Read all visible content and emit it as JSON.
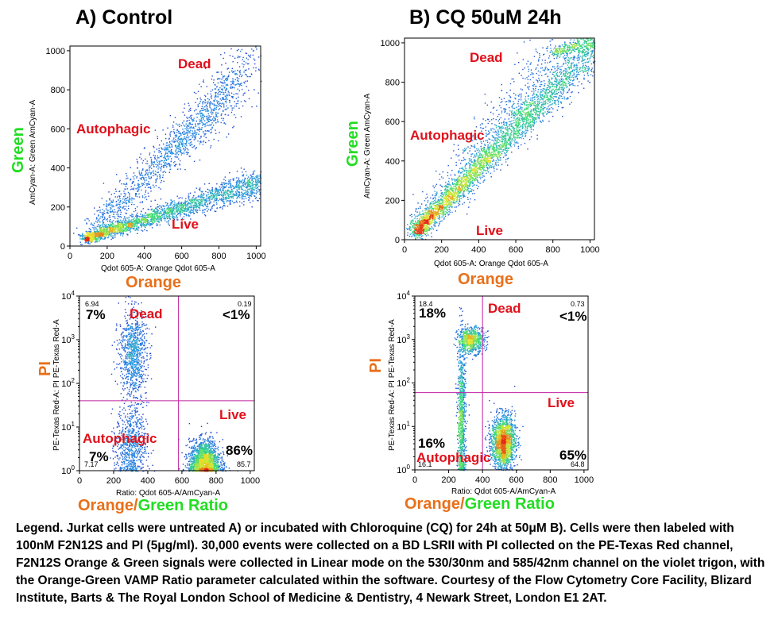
{
  "panels": {
    "a_title": "A) Control",
    "b_title": "B) CQ 50uM 24h"
  },
  "labels": {
    "green": "Green",
    "orange": "Orange",
    "pi": "PI",
    "ratio_orange": "Orange/",
    "ratio_green": "Green Ratio",
    "dead": "Dead",
    "autophagic": "Autophagic",
    "live": "Live",
    "y_top": "AmCyan-A: Green AmCyan-A",
    "x_top": "Qdot 605-A: Orange Qdot 605-A",
    "y_bottom": "PE-Texas Red-A: PI PE-Texas Red-A",
    "x_bottom": "Ratio: Qdot 605-A/AmCyan-A"
  },
  "quadrants": {
    "a": {
      "ul_small": "6.94",
      "ul_big": "7%",
      "ur_small": "0.19",
      "ur_big": "<1%",
      "ll_big": "7%",
      "ll_small": "7.17",
      "lr_big": "86%",
      "lr_small": "85.7"
    },
    "b": {
      "ul_small": "18.4",
      "ul_big": "18%",
      "ur_small": "0.73",
      "ur_big": "<1%",
      "ll_big": "16%",
      "ll_small": "16.1",
      "lr_big": "65%",
      "lr_small": "64.8"
    }
  },
  "legend_text": "Legend. Jurkat cells were untreated A) or incubated with Chloroquine (CQ) for 24h at 50μM B).   Cells were then labeled with 100nM F2N12S and PI (5μg/ml). 30,000 events were collected  on a BD LSRII with PI collected on the PE-Texas Red channel, F2N12S Orange & Green signals were collected in Linear mode on the 530/30nm and 585/42nm channel on the violet trigon, with the Orange-Green VAMP Ratio parameter calculated within the software. Courtesy of the Flow Cytometry Core Facility, Blizard Institute, Barts &  The Royal London School of Medicine & Dentistry, 4 Newark Street, London E1 2AT.",
  "chart_data": [
    {
      "type": "scatter",
      "title": "A) Control",
      "xlabel": "Qdot 605-A: Orange Qdot 605-A",
      "ylabel": "AmCyan-A: Green AmCyan-A",
      "xlim": [
        0,
        1024
      ],
      "ylim": [
        0,
        1024
      ],
      "xticks": [
        0,
        200,
        400,
        600,
        800,
        1000
      ],
      "yticks": [
        0,
        200,
        400,
        600,
        800,
        1000
      ],
      "annotations": [
        "Dead",
        "Autophagic",
        "Live"
      ],
      "populations": [
        {
          "name": "Live",
          "x0": 80,
          "y0": 40,
          "x1": 1024,
          "y1": 330,
          "spread": 25,
          "n": 2600
        },
        {
          "name": "Autophagic",
          "x0": 100,
          "y0": 60,
          "x1": 900,
          "y1": 840,
          "spread": 55,
          "n": 1100
        },
        {
          "name": "Dead",
          "x0": 500,
          "y0": 430,
          "x1": 1024,
          "y1": 1010,
          "spread": 60,
          "n": 500
        }
      ]
    },
    {
      "type": "scatter",
      "title": "B) CQ 50uM 24h",
      "xlabel": "Qdot 605-A: Orange Qdot 605-A",
      "ylabel": "AmCyan-A: Green AmCyan-A",
      "xlim": [
        0,
        1024
      ],
      "ylim": [
        0,
        1024
      ],
      "xticks": [
        0,
        200,
        400,
        600,
        800,
        1000
      ],
      "yticks": [
        0,
        200,
        400,
        600,
        800,
        1000
      ],
      "annotations": [
        "Dead",
        "Autophagic",
        "Live"
      ],
      "populations": [
        {
          "name": "Live",
          "x0": 60,
          "y0": 40,
          "x1": 1024,
          "y1": 980,
          "spread": 40,
          "n": 3000
        },
        {
          "name": "Autophagic",
          "x0": 80,
          "y0": 80,
          "x1": 800,
          "y1": 900,
          "spread": 70,
          "n": 900
        },
        {
          "name": "Dead",
          "x0": 800,
          "y0": 950,
          "x1": 1024,
          "y1": 1020,
          "spread": 20,
          "n": 300
        }
      ]
    },
    {
      "type": "scatter",
      "title": "",
      "xlabel": "Ratio: Qdot 605-A/AmCyan-A",
      "ylabel": "PE-Texas Red-A: PI PE-Texas Red-A",
      "xlim": [
        0,
        1024
      ],
      "ylog": true,
      "ylim": [
        1,
        10000
      ],
      "xticks": [
        0,
        200,
        400,
        600,
        800,
        1000
      ],
      "yticks": [
        1,
        10,
        100,
        1000,
        10000
      ],
      "quadrant_gate": {
        "x": 580,
        "y": 40
      },
      "quadrant_percents": {
        "upper_left": 6.94,
        "upper_right": 0.19,
        "lower_left": 7.17,
        "lower_right": 85.7
      },
      "annotations": [
        "Dead",
        "Autophagic",
        "Live"
      ],
      "populations": [
        {
          "name": "Dead",
          "cx": 310,
          "cy_log": 2.7,
          "sx": 40,
          "sy_log": 0.5,
          "n": 900
        },
        {
          "name": "Autophagic",
          "cx": 300,
          "cy_log": 0.6,
          "sx": 45,
          "sy_log": 0.45,
          "n": 700
        },
        {
          "name": "Live",
          "cx": 730,
          "cy_log": 0.2,
          "sx": 45,
          "sy_log": 0.25,
          "n": 1800
        }
      ]
    },
    {
      "type": "scatter",
      "title": "",
      "xlabel": "Ratio: Qdot 605-A/AmCyan-A",
      "ylabel": "PE-Texas Red-A: PI PE-Texas Red-A",
      "xlim": [
        0,
        1024
      ],
      "ylog": true,
      "ylim": [
        1,
        10000
      ],
      "xticks": [
        0,
        200,
        400,
        600,
        800,
        1000
      ],
      "yticks": [
        1,
        10,
        100,
        1000,
        10000
      ],
      "quadrant_gate": {
        "x": 400,
        "y": 60
      },
      "quadrant_percents": {
        "upper_left": 18.4,
        "upper_right": 0.73,
        "lower_left": 16.1,
        "lower_right": 64.8
      },
      "annotations": [
        "Dead",
        "Autophagic",
        "Live"
      ],
      "populations": [
        {
          "name": "Dead",
          "cx": 330,
          "cy_log": 3.0,
          "sx": 40,
          "sy_log": 0.15,
          "n": 700
        },
        {
          "name": "Autophagic",
          "cx": 275,
          "cy_log": 1.2,
          "sx": 12,
          "sy_log": 0.9,
          "n": 900
        },
        {
          "name": "Live",
          "cx": 520,
          "cy_log": 0.65,
          "sx": 35,
          "sy_log": 0.3,
          "n": 1800
        }
      ]
    }
  ]
}
